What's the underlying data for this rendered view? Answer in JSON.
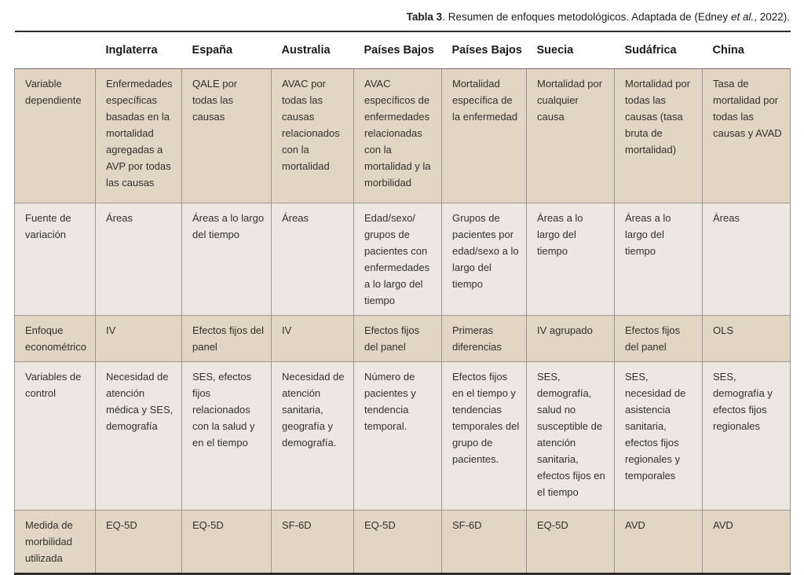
{
  "caption": {
    "label": "Tabla 3",
    "text_before_italic": ". Resumen de enfoques metodológicos. Adaptada de (Edney ",
    "italic_text": "et al.",
    "text_after_italic": ", 2022)."
  },
  "colors": {
    "row_tan": "#e3d5c3",
    "row_light": "#ece8e1",
    "border_thin": "#9c958b",
    "border_dark": "#2e2b28",
    "text": "#33302c"
  },
  "table": {
    "columns": [
      "",
      "Inglaterra",
      "España",
      "Australia",
      "Países Bajos",
      "Países Bajos",
      "Suecia",
      "Sudáfrica",
      "China"
    ],
    "rows": [
      {
        "label": "Variable dependiente",
        "cells": [
          "Enfermedades específicas basadas en la mortalidad agregadas a AVP por todas las causas",
          "QALE por todas las causas",
          "AVAC por todas las causas relacionados con la mortalidad",
          "AVAC específicos de enfermedades relacionadas con la mortalidad y la morbilidad",
          "Mortalidad específica de la enfermedad",
          "Mortalidad por cualquier causa",
          "Mortalidad por todas las causas (tasa bruta de mortalidad)",
          "Tasa de mortalidad por todas las causas y AVAD"
        ]
      },
      {
        "label": "Fuente de variación",
        "cells": [
          "Áreas",
          "Áreas a lo largo del tiempo",
          "Áreas",
          "Edad/sexo/ grupos de pacientes con enfermedades a lo largo del tiempo",
          "Grupos de pacientes por edad/sexo a lo largo del tiempo",
          "Áreas a lo largo del tiempo",
          "Áreas a lo largo del tiempo",
          "Áreas"
        ]
      },
      {
        "label": "Enfoque econométrico",
        "cells": [
          "IV",
          "Efectos fijos del panel",
          "IV",
          "Efectos fijos del panel",
          "Primeras diferencias",
          "IV agrupado",
          "Efectos fijos del panel",
          "OLS"
        ]
      },
      {
        "label": "Variables de control",
        "cells": [
          "Necesidad de atención médica y SES, demografía",
          "SES, efectos fijos relacionados con la salud y en el tiempo",
          "Necesidad de atención sanitaria, geografía y demografía.",
          "Número de pacientes y tendencia temporal.",
          "Efectos fijos en el tiempo y tendencias temporales del grupo de pacientes.",
          "SES, demografía, salud no susceptible de atención sanitaria, efectos fijos en el tiempo",
          "SES, necesidad de asistencia sanitaria, efectos fijos regionales y temporales",
          "SES, demografía y efectos fijos regionales"
        ]
      },
      {
        "label": "Medida de morbilidad utilizada",
        "cells": [
          "EQ-5D",
          "EQ-5D",
          "SF-6D",
          "EQ-5D",
          "SF-6D",
          "EQ-5D",
          "AVD",
          "AVD"
        ]
      }
    ]
  }
}
